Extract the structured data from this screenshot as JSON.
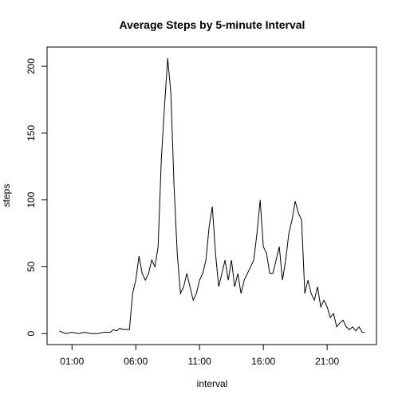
{
  "chart_data": {
    "type": "line",
    "title": "Average Steps by 5-minute Interval",
    "x_label": "interval",
    "y_label": "steps",
    "x": [
      0,
      0.5,
      1,
      1.5,
      2,
      2.5,
      3,
      3.5,
      4,
      4.25,
      4.5,
      4.75,
      5,
      5.25,
      5.5,
      5.75,
      6,
      6.25,
      6.5,
      6.75,
      7,
      7.25,
      7.5,
      7.75,
      8,
      8.25,
      8.5,
      8.75,
      9,
      9.25,
      9.5,
      9.75,
      10,
      10.25,
      10.5,
      10.75,
      11,
      11.25,
      11.5,
      11.75,
      12,
      12.25,
      12.5,
      12.75,
      13,
      13.25,
      13.5,
      13.75,
      14,
      14.25,
      14.5,
      14.75,
      15,
      15.25,
      15.5,
      15.75,
      16,
      16.25,
      16.5,
      16.75,
      17,
      17.25,
      17.5,
      17.75,
      18,
      18.25,
      18.5,
      18.75,
      19,
      19.25,
      19.5,
      19.75,
      20,
      20.25,
      20.5,
      20.75,
      21,
      21.25,
      21.5,
      21.75,
      22,
      22.25,
      22.5,
      22.75,
      23,
      23.25,
      23.5,
      23.75,
      23.92
    ],
    "series": [
      {
        "name": "steps",
        "color": "#000000",
        "values": [
          2,
          0,
          1,
          0,
          1,
          0,
          0,
          1,
          1,
          3,
          2,
          4,
          3,
          3,
          3,
          30,
          40,
          58,
          45,
          40,
          45,
          55,
          50,
          65,
          130,
          170,
          206,
          180,
          110,
          60,
          30,
          35,
          45,
          35,
          25,
          30,
          40,
          45,
          55,
          80,
          95,
          60,
          35,
          45,
          55,
          40,
          55,
          35,
          45,
          30,
          40,
          45,
          50,
          55,
          75,
          100,
          65,
          60,
          45,
          45,
          55,
          65,
          40,
          55,
          75,
          85,
          99,
          90,
          85,
          30,
          40,
          30,
          25,
          35,
          20,
          25,
          20,
          12,
          15,
          5,
          8,
          10,
          5,
          3,
          5,
          2,
          5,
          1,
          1
        ]
      }
    ],
    "xlim": [
      -0.957,
      24.87
    ],
    "ylim": [
      -8.24,
      214.4
    ],
    "xticks": [
      {
        "value": 1,
        "label": "01:00"
      },
      {
        "value": 6,
        "label": "06:00"
      },
      {
        "value": 11,
        "label": "11:00"
      },
      {
        "value": 16,
        "label": "16:00"
      },
      {
        "value": 21,
        "label": "21:00"
      }
    ],
    "yticks": [
      0,
      50,
      100,
      150,
      200
    ]
  }
}
